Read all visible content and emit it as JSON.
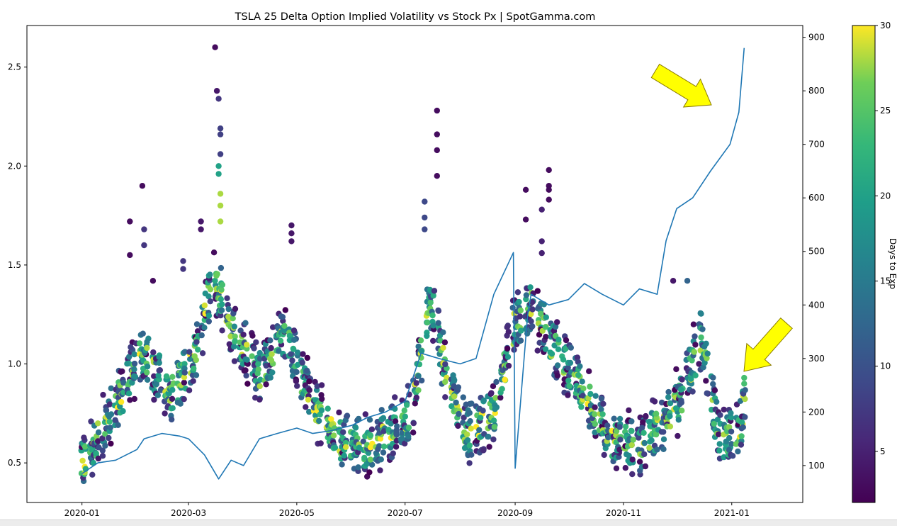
{
  "chart_data": {
    "type": "scatter",
    "title": "TSLA 25 Delta Option Implied Volatility vs Stock Px | SpotGamma.com",
    "x_ticks": [
      "2020-01",
      "2020-03",
      "2020-05",
      "2020-07",
      "2020-09",
      "2020-11",
      "2021-01"
    ],
    "xlim": [
      "2019-12-01",
      "2021-02-10"
    ],
    "left_axis": {
      "label": "",
      "ticks": [
        0.5,
        1.0,
        1.5,
        2.0,
        2.5
      ],
      "tick_labels": [
        "0.5",
        "1.0",
        "1.5",
        "2.0",
        "2.5"
      ],
      "ylim": [
        0.3,
        2.71
      ]
    },
    "right_axis": {
      "label": "",
      "ticks": [
        100,
        200,
        300,
        400,
        500,
        600,
        700,
        800,
        900
      ],
      "tick_labels": [
        "100",
        "200",
        "300",
        "400",
        "500",
        "600",
        "700",
        "800",
        "900"
      ],
      "ylim": [
        31,
        922
      ]
    },
    "colorbar": {
      "label": "Days to Exp",
      "ticks": [
        5,
        10,
        15,
        20,
        25,
        30
      ],
      "tick_labels": [
        "5",
        "10",
        "15",
        "20",
        "25",
        "30"
      ],
      "range": [
        2,
        30
      ],
      "colormap": "viridis"
    },
    "grid": false,
    "iv_trend": {
      "x": [
        "2020-01-01",
        "2020-01-20",
        "2020-02-05",
        "2020-02-20",
        "2020-03-05",
        "2020-03-15",
        "2020-03-25",
        "2020-04-10",
        "2020-04-25",
        "2020-05-10",
        "2020-05-25",
        "2020-06-10",
        "2020-06-25",
        "2020-07-05",
        "2020-07-15",
        "2020-07-25",
        "2020-08-05",
        "2020-08-20",
        "2020-09-01",
        "2020-09-10",
        "2020-09-25",
        "2020-10-10",
        "2020-10-25",
        "2020-11-10",
        "2020-11-25",
        "2020-12-05",
        "2020-12-15",
        "2020-12-25",
        "2021-01-05",
        "2021-01-08"
      ],
      "y": [
        0.48,
        0.8,
        1.05,
        0.85,
        1.05,
        1.45,
        1.2,
        0.95,
        1.15,
        0.78,
        0.62,
        0.58,
        0.68,
        0.75,
        1.35,
        0.9,
        0.65,
        0.75,
        1.2,
        1.3,
        1.05,
        0.85,
        0.62,
        0.58,
        0.72,
        0.85,
        1.15,
        0.62,
        0.65,
        0.8
      ],
      "min_days": 2,
      "max_days": 30
    },
    "iv_spikes": [
      {
        "x": "2020-01-28",
        "y": [
          1.55,
          1.72
        ],
        "days": 3
      },
      {
        "x": "2020-02-04",
        "y": [
          1.9
        ],
        "days": 3
      },
      {
        "x": "2020-02-05",
        "y": [
          1.6,
          1.68
        ],
        "days": 7
      },
      {
        "x": "2020-02-10",
        "y": [
          1.42
        ],
        "days": 3
      },
      {
        "x": "2020-02-27",
        "y": [
          1.48,
          1.52
        ],
        "days": 7
      },
      {
        "x": "2020-03-08",
        "y": [
          1.68,
          1.72
        ],
        "days": 4
      },
      {
        "x": "2020-03-16",
        "y": [
          2.6
        ],
        "days": 3
      },
      {
        "x": "2020-03-17",
        "y": [
          2.38
        ],
        "days": 4
      },
      {
        "x": "2020-03-18",
        "y": [
          2.34
        ],
        "days": 7
      },
      {
        "x": "2020-03-19",
        "y": [
          2.19,
          2.16,
          2.06
        ],
        "days": 8
      },
      {
        "x": "2020-03-18",
        "y": [
          2.0,
          1.96
        ],
        "days": 20
      },
      {
        "x": "2020-03-19",
        "y": [
          1.86,
          1.8,
          1.72
        ],
        "days": 28
      },
      {
        "x": "2020-04-28",
        "y": [
          1.62,
          1.66,
          1.7
        ],
        "days": 4
      },
      {
        "x": "2020-07-19",
        "y": [
          2.28,
          2.16,
          2.08,
          1.95
        ],
        "days": 3
      },
      {
        "x": "2020-07-12",
        "y": [
          1.82,
          1.74,
          1.68
        ],
        "days": 9
      },
      {
        "x": "2020-09-07",
        "y": [
          1.88,
          1.73
        ],
        "days": 3
      },
      {
        "x": "2020-09-16",
        "y": [
          1.62,
          1.56,
          1.78
        ],
        "days": 5
      },
      {
        "x": "2020-09-20",
        "y": [
          1.98,
          1.9,
          1.88,
          1.83
        ],
        "days": 3
      },
      {
        "x": "2020-11-29",
        "y": [
          1.42
        ],
        "days": 4
      },
      {
        "x": "2020-12-07",
        "y": [
          1.42
        ],
        "days": 12
      },
      {
        "x": "2021-01-08",
        "y": [
          0.93,
          0.9
        ],
        "days": 24
      }
    ],
    "stock_px": {
      "name": "Stock Px",
      "x": [
        "2020-01-01",
        "2020-01-10",
        "2020-01-20",
        "2020-02-01",
        "2020-02-05",
        "2020-02-15",
        "2020-02-25",
        "2020-03-01",
        "2020-03-10",
        "2020-03-18",
        "2020-03-25",
        "2020-04-01",
        "2020-04-10",
        "2020-04-20",
        "2020-05-01",
        "2020-05-10",
        "2020-05-20",
        "2020-06-01",
        "2020-06-10",
        "2020-06-20",
        "2020-07-01",
        "2020-07-10",
        "2020-07-20",
        "2020-08-01",
        "2020-08-10",
        "2020-08-20",
        "2020-08-31",
        "2020-09-01",
        "2020-09-08",
        "2020-09-10",
        "2020-09-20",
        "2020-10-01",
        "2020-10-10",
        "2020-10-20",
        "2020-11-01",
        "2020-11-10",
        "2020-11-20",
        "2020-11-25",
        "2020-12-01",
        "2020-12-10",
        "2020-12-20",
        "2020-12-31",
        "2021-01-05",
        "2021-01-08"
      ],
      "y": [
        85,
        105,
        110,
        130,
        150,
        160,
        155,
        150,
        120,
        75,
        110,
        100,
        150,
        160,
        170,
        160,
        165,
        175,
        190,
        200,
        220,
        310,
        300,
        290,
        300,
        420,
        498,
        95,
        380,
        420,
        400,
        410,
        440,
        420,
        400,
        430,
        420,
        520,
        580,
        600,
        650,
        700,
        760,
        880
      ],
      "color": "#1f77b4"
    },
    "annotations": [
      {
        "type": "arrow",
        "color": "#ffff00",
        "points_to": "stock price top-right"
      },
      {
        "type": "arrow",
        "color": "#ffff00",
        "points_to": "implied volatility right"
      }
    ]
  }
}
